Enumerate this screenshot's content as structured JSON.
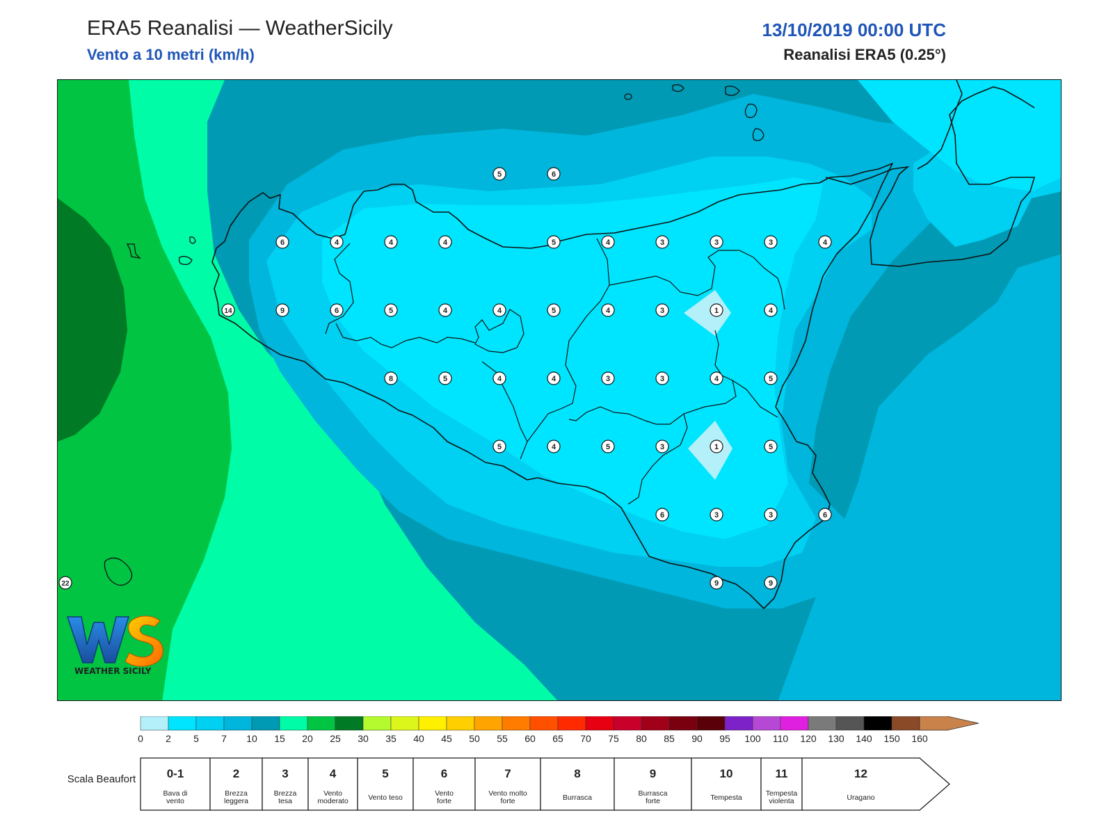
{
  "header": {
    "title": "ERA5 Reanalisi — WeatherSicily",
    "subtitle": "Vento a 10 metri (km/h)",
    "datetime": "13/10/2019 00:00 UTC",
    "dataset": "Reanalisi ERA5 (0.25°)"
  },
  "logo": {
    "text": "WEATHER SICILY"
  },
  "colors": {
    "title_blue": "#1f55b8",
    "field_0_2": "#b3f0fa",
    "field_2_5": "#00e5ff",
    "field_5_7": "#00d0f2",
    "field_7_10": "#00b6dc",
    "field_10_15": "#009ab4",
    "field_15_20": "#00fca6",
    "field_20_25": "#00c442",
    "field_25_30": "#007a24"
  },
  "wind_values": [
    {
      "lon": 14.25,
      "lat": 38.5,
      "value": "5"
    },
    {
      "lon": 14.75,
      "lat": 38.5,
      "value": "6"
    },
    {
      "lon": 12.25,
      "lat": 38.0,
      "value": "6"
    },
    {
      "lon": 12.75,
      "lat": 38.0,
      "value": "4"
    },
    {
      "lon": 13.25,
      "lat": 38.0,
      "value": "4"
    },
    {
      "lon": 13.75,
      "lat": 38.0,
      "value": "4"
    },
    {
      "lon": 14.75,
      "lat": 38.0,
      "value": "5"
    },
    {
      "lon": 15.25,
      "lat": 38.0,
      "value": "4"
    },
    {
      "lon": 15.75,
      "lat": 38.0,
      "value": "3"
    },
    {
      "lon": 16.25,
      "lat": 38.0,
      "value": "3"
    },
    {
      "lon": 16.75,
      "lat": 38.0,
      "value": "3"
    },
    {
      "lon": 17.25,
      "lat": 38.0,
      "value": "4"
    },
    {
      "lon": 11.75,
      "lat": 37.5,
      "value": "14"
    },
    {
      "lon": 12.25,
      "lat": 37.5,
      "value": "9"
    },
    {
      "lon": 12.75,
      "lat": 37.5,
      "value": "6"
    },
    {
      "lon": 13.25,
      "lat": 37.5,
      "value": "5"
    },
    {
      "lon": 13.75,
      "lat": 37.5,
      "value": "4"
    },
    {
      "lon": 14.25,
      "lat": 37.5,
      "value": "4"
    },
    {
      "lon": 14.75,
      "lat": 37.5,
      "value": "5"
    },
    {
      "lon": 15.25,
      "lat": 37.5,
      "value": "4"
    },
    {
      "lon": 15.75,
      "lat": 37.5,
      "value": "3"
    },
    {
      "lon": 16.25,
      "lat": 37.5,
      "value": "1"
    },
    {
      "lon": 16.75,
      "lat": 37.5,
      "value": "4"
    },
    {
      "lon": 13.25,
      "lat": 37.0,
      "value": "8"
    },
    {
      "lon": 13.75,
      "lat": 37.0,
      "value": "5"
    },
    {
      "lon": 14.25,
      "lat": 37.0,
      "value": "4"
    },
    {
      "lon": 14.75,
      "lat": 37.0,
      "value": "4"
    },
    {
      "lon": 15.25,
      "lat": 37.0,
      "value": "3"
    },
    {
      "lon": 15.75,
      "lat": 37.0,
      "value": "3"
    },
    {
      "lon": 16.25,
      "lat": 37.0,
      "value": "4"
    },
    {
      "lon": 16.75,
      "lat": 37.0,
      "value": "5"
    },
    {
      "lon": 14.25,
      "lat": 36.5,
      "value": "5"
    },
    {
      "lon": 14.75,
      "lat": 36.5,
      "value": "4"
    },
    {
      "lon": 15.25,
      "lat": 36.5,
      "value": "5"
    },
    {
      "lon": 15.75,
      "lat": 36.5,
      "value": "3"
    },
    {
      "lon": 16.25,
      "lat": 36.5,
      "value": "1"
    },
    {
      "lon": 16.75,
      "lat": 36.5,
      "value": "5"
    },
    {
      "lon": 15.75,
      "lat": 36.0,
      "value": "6"
    },
    {
      "lon": 16.25,
      "lat": 36.0,
      "value": "3"
    },
    {
      "lon": 16.75,
      "lat": 36.0,
      "value": "3"
    },
    {
      "lon": 17.25,
      "lat": 36.0,
      "value": "6"
    },
    {
      "lon": 16.25,
      "lat": 35.5,
      "value": "9"
    },
    {
      "lon": 16.75,
      "lat": 35.5,
      "value": "9"
    },
    {
      "lon": 10.25,
      "lat": 35.5,
      "value": "22"
    }
  ],
  "legend": {
    "colorbar_ticks": [
      "0",
      "2",
      "5",
      "7",
      "10",
      "15",
      "20",
      "25",
      "30",
      "35",
      "40",
      "45",
      "50",
      "55",
      "60",
      "65",
      "70",
      "75",
      "80",
      "85",
      "90",
      "95",
      "100",
      "110",
      "120",
      "130",
      "140",
      "150",
      "160"
    ],
    "colorbar_colors": [
      "#b3f0fa",
      "#00e5ff",
      "#00d0f2",
      "#00b6dc",
      "#009ab4",
      "#00fca6",
      "#00c442",
      "#007a24",
      "#b4fa2e",
      "#dcf51a",
      "#fff000",
      "#ffcf00",
      "#ffa400",
      "#ff7c00",
      "#ff5000",
      "#ff2a00",
      "#e60012",
      "#c8002a",
      "#a00018",
      "#7a0010",
      "#5a0008",
      "#7d22c8",
      "#b548d4",
      "#e020e0",
      "#7a7a7a",
      "#555555",
      "#000000",
      "#8a4a28",
      "#c8824a"
    ],
    "beaufort_title": "Scala Beaufort",
    "beaufort": [
      {
        "num": "0-1",
        "desc": "Bava di vento"
      },
      {
        "num": "2",
        "desc": "Brezza leggera"
      },
      {
        "num": "3",
        "desc": "Brezza tesa"
      },
      {
        "num": "4",
        "desc": "Vento moderato"
      },
      {
        "num": "5",
        "desc": "Vento teso"
      },
      {
        "num": "6",
        "desc": "Vento forte"
      },
      {
        "num": "7",
        "desc": "Vento molto forte"
      },
      {
        "num": "8",
        "desc": "Burrasca"
      },
      {
        "num": "9",
        "desc": "Burrasca forte"
      },
      {
        "num": "10",
        "desc": "Tempesta"
      },
      {
        "num": "11",
        "desc": "Tempesta violenta"
      },
      {
        "num": "12",
        "desc": "Uragano"
      }
    ]
  }
}
